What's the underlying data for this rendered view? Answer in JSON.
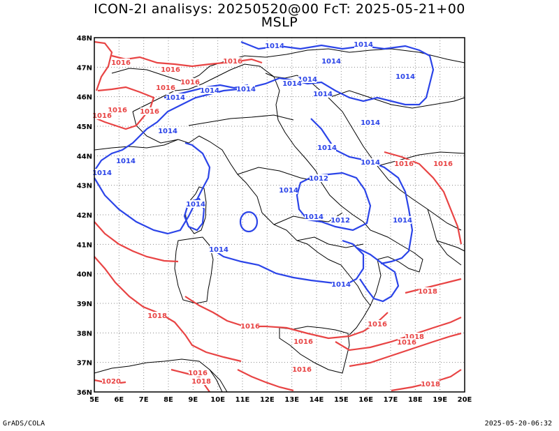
{
  "title": {
    "line1": "ICON-2I analisys: 20250520@00 FcT: 2025-05-21+00",
    "line2": "MSLP"
  },
  "footer": {
    "left": "GrADS/COLA",
    "right": "2025-05-20-06:32"
  },
  "map": {
    "lon_range": [
      5,
      20
    ],
    "lat_range": [
      36,
      48
    ],
    "grid": "dotted",
    "x_ticks": [
      "5E",
      "6E",
      "7E",
      "8E",
      "9E",
      "10E",
      "11E",
      "12E",
      "13E",
      "14E",
      "15E",
      "16E",
      "17E",
      "18E",
      "19E",
      "20E"
    ],
    "y_ticks": [
      "36N",
      "37N",
      "38N",
      "39N",
      "40N",
      "41N",
      "42N",
      "43N",
      "44N",
      "45N",
      "46N",
      "47N",
      "48N"
    ],
    "colors": {
      "low": "#2b44e8",
      "high": "#e84444",
      "coast": "#000000"
    },
    "contour_labels_blue": [
      "1014",
      "1014",
      "1014",
      "1014",
      "1014",
      "1014",
      "1014",
      "1014",
      "1014",
      "1014",
      "1014",
      "1012",
      "1014",
      "1014",
      "1012",
      "1014",
      "1014",
      "1014",
      "1014",
      "1014",
      "1014",
      "1014",
      "1014",
      "1014"
    ],
    "contour_labels_red": [
      "1016",
      "1016",
      "1016",
      "1016",
      "1016",
      "1016",
      "1016",
      "1016",
      "1018",
      "1016",
      "1016",
      "1016",
      "1018",
      "1016",
      "1016",
      "1018",
      "1016",
      "1018",
      "1020",
      "1018",
      "1016",
      "1016"
    ]
  }
}
